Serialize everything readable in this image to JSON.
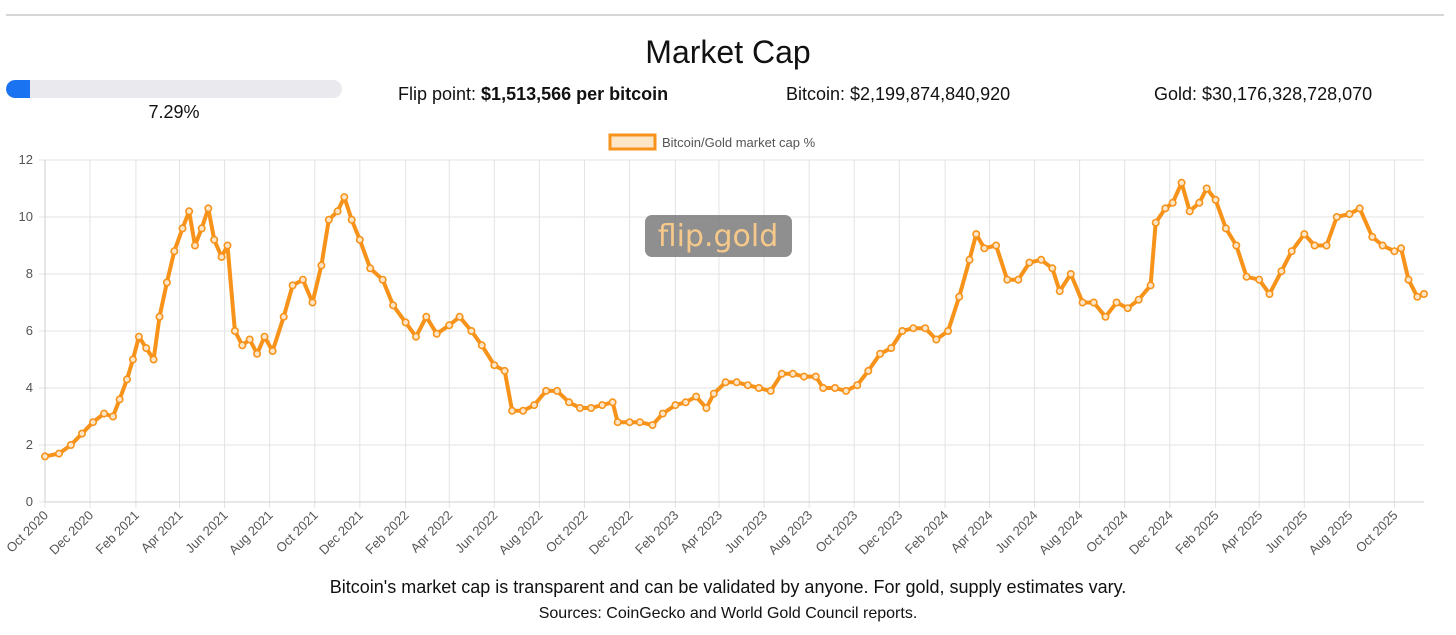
{
  "header": {
    "title": "Market Cap",
    "progress_percent": 7.29,
    "progress_label": "7.29%",
    "flip_label": "Flip point: ",
    "flip_value": "$1,513,566 per bitcoin",
    "bitcoin_label": "Bitcoin: $2,199,874,840,920",
    "gold_label": "Gold: $30,176,328,728,070",
    "accent_color": "#1a73f0"
  },
  "chart_data": {
    "type": "line",
    "series": [
      {
        "name": "Bitcoin/Gold market cap %",
        "color": "#f7931a",
        "points": [
          [
            "2020-10-01",
            1.6
          ],
          [
            "2020-10-20",
            1.7
          ],
          [
            "2020-11-05",
            2.0
          ],
          [
            "2020-11-20",
            2.4
          ],
          [
            "2020-12-05",
            2.8
          ],
          [
            "2020-12-20",
            3.1
          ],
          [
            "2021-01-01",
            3.0
          ],
          [
            "2021-01-10",
            3.6
          ],
          [
            "2021-01-20",
            4.3
          ],
          [
            "2021-01-28",
            5.0
          ],
          [
            "2021-02-05",
            5.8
          ],
          [
            "2021-02-15",
            5.4
          ],
          [
            "2021-02-25",
            5.0
          ],
          [
            "2021-03-05",
            6.5
          ],
          [
            "2021-03-15",
            7.7
          ],
          [
            "2021-03-25",
            8.8
          ],
          [
            "2021-04-05",
            9.6
          ],
          [
            "2021-04-14",
            10.2
          ],
          [
            "2021-04-22",
            9.0
          ],
          [
            "2021-05-01",
            9.6
          ],
          [
            "2021-05-10",
            10.3
          ],
          [
            "2021-05-18",
            9.2
          ],
          [
            "2021-05-28",
            8.6
          ],
          [
            "2021-06-05",
            9.0
          ],
          [
            "2021-06-15",
            6.0
          ],
          [
            "2021-06-25",
            5.5
          ],
          [
            "2021-07-05",
            5.7
          ],
          [
            "2021-07-15",
            5.2
          ],
          [
            "2021-07-25",
            5.8
          ],
          [
            "2021-08-05",
            5.3
          ],
          [
            "2021-08-20",
            6.5
          ],
          [
            "2021-09-01",
            7.6
          ],
          [
            "2021-09-15",
            7.8
          ],
          [
            "2021-09-28",
            7.0
          ],
          [
            "2021-10-10",
            8.3
          ],
          [
            "2021-10-20",
            9.9
          ],
          [
            "2021-11-01",
            10.2
          ],
          [
            "2021-11-10",
            10.7
          ],
          [
            "2021-11-20",
            9.9
          ],
          [
            "2021-12-01",
            9.2
          ],
          [
            "2021-12-15",
            8.2
          ],
          [
            "2022-01-01",
            7.8
          ],
          [
            "2022-01-15",
            6.9
          ],
          [
            "2022-02-01",
            6.3
          ],
          [
            "2022-02-15",
            5.8
          ],
          [
            "2022-03-01",
            6.5
          ],
          [
            "2022-03-15",
            5.9
          ],
          [
            "2022-04-01",
            6.2
          ],
          [
            "2022-04-15",
            6.5
          ],
          [
            "2022-05-01",
            6.0
          ],
          [
            "2022-05-15",
            5.5
          ],
          [
            "2022-06-01",
            4.8
          ],
          [
            "2022-06-15",
            4.6
          ],
          [
            "2022-06-25",
            3.2
          ],
          [
            "2022-07-10",
            3.2
          ],
          [
            "2022-07-25",
            3.4
          ],
          [
            "2022-08-10",
            3.9
          ],
          [
            "2022-08-25",
            3.9
          ],
          [
            "2022-09-10",
            3.5
          ],
          [
            "2022-09-25",
            3.3
          ],
          [
            "2022-10-10",
            3.3
          ],
          [
            "2022-10-25",
            3.4
          ],
          [
            "2022-11-08",
            3.5
          ],
          [
            "2022-11-15",
            2.8
          ],
          [
            "2022-12-01",
            2.8
          ],
          [
            "2022-12-15",
            2.8
          ],
          [
            "2023-01-01",
            2.7
          ],
          [
            "2023-01-15",
            3.1
          ],
          [
            "2023-02-01",
            3.4
          ],
          [
            "2023-02-15",
            3.5
          ],
          [
            "2023-03-01",
            3.7
          ],
          [
            "2023-03-15",
            3.3
          ],
          [
            "2023-03-25",
            3.8
          ],
          [
            "2023-04-10",
            4.2
          ],
          [
            "2023-04-25",
            4.2
          ],
          [
            "2023-05-10",
            4.1
          ],
          [
            "2023-05-25",
            4.0
          ],
          [
            "2023-06-10",
            3.9
          ],
          [
            "2023-06-25",
            4.5
          ],
          [
            "2023-07-10",
            4.5
          ],
          [
            "2023-07-25",
            4.4
          ],
          [
            "2023-08-10",
            4.4
          ],
          [
            "2023-08-20",
            4.0
          ],
          [
            "2023-09-05",
            4.0
          ],
          [
            "2023-09-20",
            3.9
          ],
          [
            "2023-10-05",
            4.1
          ],
          [
            "2023-10-20",
            4.6
          ],
          [
            "2023-11-05",
            5.2
          ],
          [
            "2023-11-20",
            5.4
          ],
          [
            "2023-12-05",
            6.0
          ],
          [
            "2023-12-20",
            6.1
          ],
          [
            "2024-01-05",
            6.1
          ],
          [
            "2024-01-20",
            5.7
          ],
          [
            "2024-02-05",
            6.0
          ],
          [
            "2024-02-20",
            7.2
          ],
          [
            "2024-03-05",
            8.5
          ],
          [
            "2024-03-14",
            9.4
          ],
          [
            "2024-03-25",
            8.9
          ],
          [
            "2024-04-10",
            9.0
          ],
          [
            "2024-04-25",
            7.8
          ],
          [
            "2024-05-10",
            7.8
          ],
          [
            "2024-05-25",
            8.4
          ],
          [
            "2024-06-10",
            8.5
          ],
          [
            "2024-06-25",
            8.2
          ],
          [
            "2024-07-05",
            7.4
          ],
          [
            "2024-07-20",
            8.0
          ],
          [
            "2024-08-05",
            7.0
          ],
          [
            "2024-08-20",
            7.0
          ],
          [
            "2024-09-05",
            6.5
          ],
          [
            "2024-09-20",
            7.0
          ],
          [
            "2024-10-05",
            6.8
          ],
          [
            "2024-10-20",
            7.1
          ],
          [
            "2024-11-05",
            7.6
          ],
          [
            "2024-11-12",
            9.8
          ],
          [
            "2024-11-25",
            10.3
          ],
          [
            "2024-12-05",
            10.5
          ],
          [
            "2024-12-17",
            11.2
          ],
          [
            "2024-12-28",
            10.2
          ],
          [
            "2025-01-10",
            10.5
          ],
          [
            "2025-01-20",
            11.0
          ],
          [
            "2025-02-01",
            10.6
          ],
          [
            "2025-02-15",
            9.6
          ],
          [
            "2025-03-01",
            9.0
          ],
          [
            "2025-03-15",
            7.9
          ],
          [
            "2025-04-01",
            7.8
          ],
          [
            "2025-04-15",
            7.3
          ],
          [
            "2025-05-01",
            8.1
          ],
          [
            "2025-05-15",
            8.8
          ],
          [
            "2025-06-01",
            9.4
          ],
          [
            "2025-06-15",
            9.0
          ],
          [
            "2025-07-01",
            9.0
          ],
          [
            "2025-07-15",
            10.0
          ],
          [
            "2025-08-01",
            10.1
          ],
          [
            "2025-08-15",
            10.3
          ],
          [
            "2025-09-01",
            9.3
          ],
          [
            "2025-09-15",
            9.0
          ],
          [
            "2025-10-01",
            8.8
          ],
          [
            "2025-10-10",
            8.9
          ],
          [
            "2025-10-20",
            7.8
          ],
          [
            "2025-11-01",
            7.2
          ],
          [
            "2025-11-10",
            7.3
          ]
        ]
      }
    ],
    "x_ticks": [
      "Oct 2020",
      "Dec 2020",
      "Feb 2021",
      "Apr 2021",
      "Jun 2021",
      "Aug 2021",
      "Oct 2021",
      "Dec 2021",
      "Feb 2022",
      "Apr 2022",
      "Jun 2022",
      "Aug 2022",
      "Oct 2022",
      "Dec 2022",
      "Feb 2023",
      "Apr 2023",
      "Jun 2023",
      "Aug 2023",
      "Oct 2023",
      "Dec 2023",
      "Feb 2024",
      "Apr 2024",
      "Jun 2024",
      "Aug 2024",
      "Oct 2024",
      "Dec 2024",
      "Feb 2025",
      "Apr 2025",
      "Jun 2025",
      "Aug 2025",
      "Oct 2025"
    ],
    "x_tick_dates": [
      "2020-10-01",
      "2020-12-01",
      "2021-02-01",
      "2021-04-01",
      "2021-06-01",
      "2021-08-01",
      "2021-10-01",
      "2021-12-01",
      "2022-02-01",
      "2022-04-01",
      "2022-06-01",
      "2022-08-01",
      "2022-10-01",
      "2022-12-01",
      "2023-02-01",
      "2023-04-01",
      "2023-06-01",
      "2023-08-01",
      "2023-10-01",
      "2023-12-01",
      "2024-02-01",
      "2024-04-01",
      "2024-06-01",
      "2024-08-01",
      "2024-10-01",
      "2024-12-01",
      "2025-02-01",
      "2025-04-01",
      "2025-06-01",
      "2025-08-01",
      "2025-10-01"
    ],
    "xlim": [
      "2020-10-01",
      "2025-11-10"
    ],
    "ylim": [
      0,
      12
    ],
    "y_ticks": [
      "0",
      "2",
      "4",
      "6",
      "8",
      "10",
      "12"
    ],
    "grid": true,
    "legend_position": "top",
    "watermark": "flip.gold"
  },
  "footer": {
    "note": "Bitcoin's market cap is transparent and can be validated by anyone. For gold, supply estimates vary.",
    "sources": "Sources: CoinGecko and World Gold Council reports."
  }
}
